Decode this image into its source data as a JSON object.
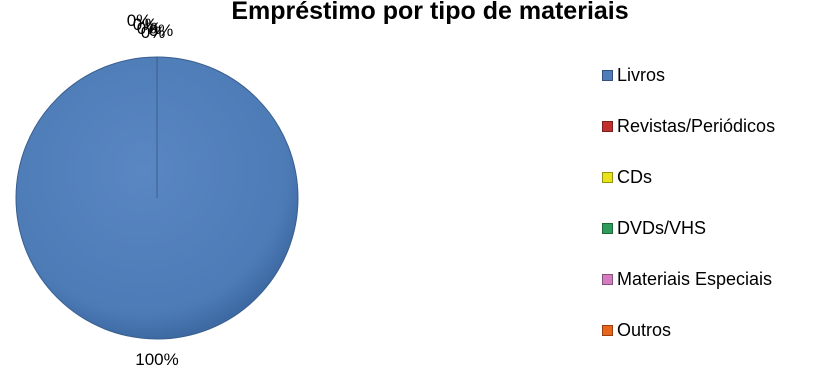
{
  "chart_data": {
    "type": "pie",
    "title": "Empréstimo por tipo de materiais",
    "categories": [
      "Livros",
      "Revistas/Periódicos",
      "CDs",
      "DVDs/VHS",
      "Materiais Especiais",
      "Outros"
    ],
    "values": [
      100,
      0,
      0,
      0,
      0,
      0
    ],
    "data_labels": [
      "100%",
      "0%",
      "0%",
      "0%",
      "0%",
      "0%"
    ],
    "colors": [
      "#4F7DB9",
      "#C0312D",
      "#E8E21C",
      "#2E9B5A",
      "#D47BC2",
      "#E8651E"
    ],
    "legend_position": "right"
  }
}
